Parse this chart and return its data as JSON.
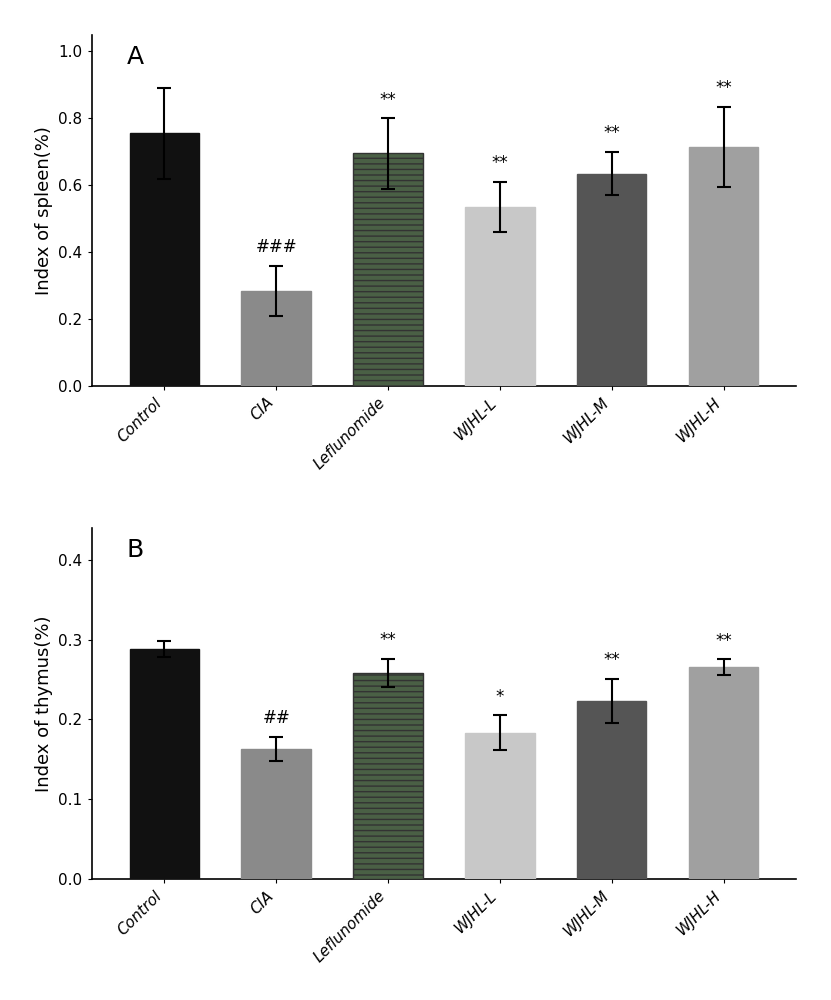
{
  "panel_A": {
    "title": "A",
    "ylabel": "Index of spleen(%)",
    "categories": [
      "Control",
      "CIA",
      "Leflunomide",
      "WJHL-L",
      "WJHL-M",
      "WJHL-H"
    ],
    "values": [
      0.755,
      0.285,
      0.695,
      0.535,
      0.635,
      0.715
    ],
    "errors": [
      0.135,
      0.075,
      0.105,
      0.075,
      0.065,
      0.12
    ],
    "colors": [
      "#111111",
      "#8a8a8a",
      "#4a6045",
      "#c8c8c8",
      "#555555",
      "#a0a0a0"
    ],
    "hatch": [
      null,
      null,
      "---",
      null,
      null,
      null
    ],
    "ylim": [
      0,
      1.05
    ],
    "yticks": [
      0.0,
      0.2,
      0.4,
      0.6,
      0.8,
      1.0
    ],
    "sig_labels": [
      "",
      "###",
      "**",
      "**",
      "**",
      "**"
    ]
  },
  "panel_B": {
    "title": "B",
    "ylabel": "Index of thymus(%)",
    "categories": [
      "Control",
      "CIA",
      "Leflunomide",
      "WJHL-L",
      "WJHL-M",
      "WJHL-H"
    ],
    "values": [
      0.288,
      0.163,
      0.258,
      0.183,
      0.223,
      0.265
    ],
    "errors": [
      0.01,
      0.015,
      0.018,
      0.022,
      0.028,
      0.01
    ],
    "colors": [
      "#111111",
      "#8a8a8a",
      "#4a6045",
      "#c8c8c8",
      "#555555",
      "#a0a0a0"
    ],
    "hatch": [
      null,
      null,
      "---",
      null,
      null,
      null
    ],
    "ylim": [
      0,
      0.44
    ],
    "yticks": [
      0.0,
      0.1,
      0.2,
      0.3,
      0.4
    ],
    "sig_labels": [
      "",
      "##",
      "**",
      "*",
      "**",
      "**"
    ]
  },
  "background_color": "#ffffff",
  "bar_width": 0.62,
  "fontsize_label": 13,
  "fontsize_tick": 11,
  "fontsize_sig": 12,
  "fontsize_panel": 18
}
